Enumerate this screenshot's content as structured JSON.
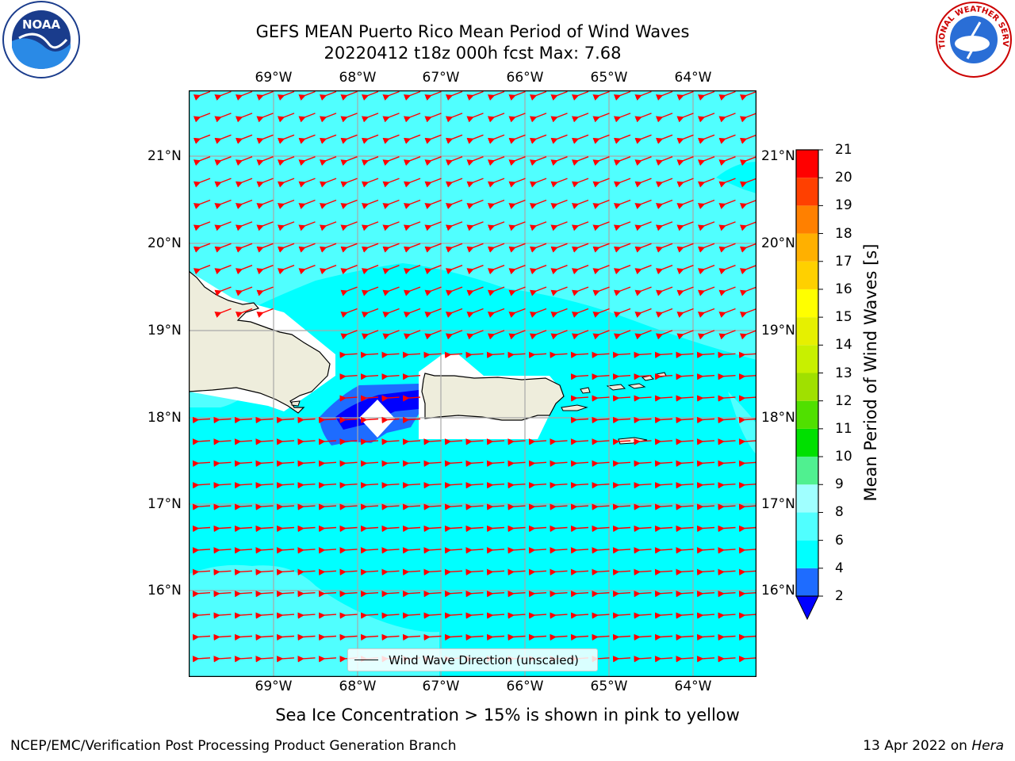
{
  "title_line1": "GEFS MEAN Puerto Rico Mean Period of Wind Waves",
  "title_line2": "20220412 t18z 000h fcst   Max: 7.68",
  "lon_labels": [
    "69°W",
    "68°W",
    "67°W",
    "66°W",
    "65°W",
    "64°W"
  ],
  "lat_labels": [
    "21°N",
    "20°N",
    "19°N",
    "18°N",
    "17°N",
    "16°N"
  ],
  "colorbar": {
    "label": "Mean Period of Wind Waves [s]",
    "ticks": [
      "2",
      "4",
      "6",
      "8",
      "9",
      "10",
      "11",
      "12",
      "13",
      "14",
      "15",
      "16",
      "17",
      "18",
      "19",
      "20",
      "21"
    ],
    "colors": [
      "#0000ff",
      "#1e6cff",
      "#00ffff",
      "#50ffff",
      "#a0ffff",
      "#50f090",
      "#00e000",
      "#50e000",
      "#a0e000",
      "#c8f000",
      "#e6f000",
      "#ffff00",
      "#ffd000",
      "#ffb000",
      "#ff8000",
      "#ff4000",
      "#ff0000"
    ]
  },
  "legend": {
    "label": "Wind Wave Direction (unscaled)"
  },
  "subtitle": "Sea Ice Concentration > 15% is shown in pink to yellow",
  "footer": {
    "left": "NCEP/EMC/Verification Post Processing Product Generation Branch",
    "date": "13 Apr 2022 on",
    "machine": "Hera"
  },
  "logos": {
    "left": "NOAA",
    "right": "NATIONAL WEATHER SERVICE"
  },
  "map": {
    "lon_range": [
      -70.0,
      -63.25
    ],
    "lat_range": [
      15.0,
      21.75
    ],
    "land_color": "#eeeddc",
    "ocean_color": "#00ffff",
    "arrow_color": "#ff0000"
  }
}
